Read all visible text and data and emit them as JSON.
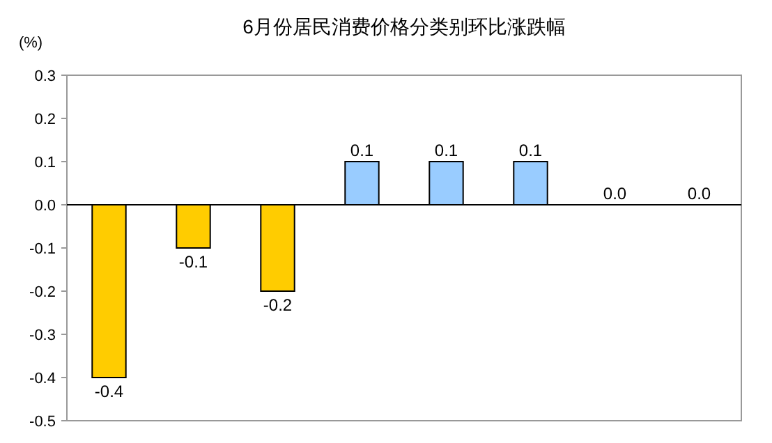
{
  "chart_data": {
    "type": "bar",
    "title": "6月份居民消费价格分类别环比涨跌幅",
    "ylabel": "(%)",
    "categories": [
      null,
      null,
      null,
      null,
      null,
      null,
      null,
      null
    ],
    "values": [
      -0.4,
      -0.1,
      -0.2,
      0.1,
      0.1,
      0.1,
      0.0,
      0.0
    ],
    "colors": [
      "#ffcc00",
      "#ffcc00",
      "#ffcc00",
      "#99ccff",
      "#99ccff",
      "#99ccff",
      "#99ccff",
      "#99ccff"
    ],
    "ylim": [
      -0.5,
      0.3
    ],
    "yticks": [
      {
        "value": -0.5,
        "label": "-0.5"
      },
      {
        "value": -0.4,
        "label": "-0.4"
      },
      {
        "value": -0.3,
        "label": "-0.3"
      },
      {
        "value": -0.2,
        "label": "-0.2"
      },
      {
        "value": -0.1,
        "label": "-0.1"
      },
      {
        "value": 0,
        "label": "0.0"
      },
      {
        "value": 0.1,
        "label": "0.1"
      },
      {
        "value": 0.2,
        "label": "0.2"
      },
      {
        "value": 0.3,
        "label": "0.3"
      }
    ],
    "value_labels": [
      "-0.4",
      "-0.1",
      "-0.2",
      "0.1",
      "0.1",
      "0.1",
      "0.0",
      "0.0"
    ]
  }
}
